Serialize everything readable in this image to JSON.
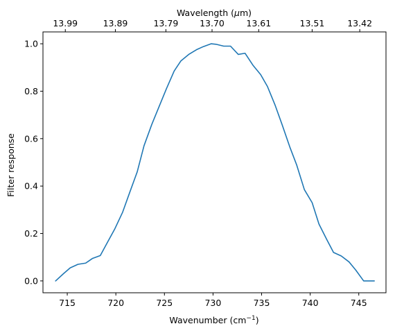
{
  "chart_data": {
    "type": "line",
    "xlabel": "Wavenumber (cm",
    "xlabel_sup": "−1",
    "xlabel_suffix": ")",
    "ylabel": "Filter response",
    "top_xlabel_prefix": "Wavelength (",
    "top_xlabel_mu": "μ",
    "top_xlabel_suffix": "m)",
    "xlim": [
      712.5,
      747.8
    ],
    "ylim": [
      -0.05,
      1.05
    ],
    "x_ticks": [
      715,
      720,
      725,
      730,
      735,
      740,
      745
    ],
    "x_tick_labels": [
      "715",
      "720",
      "725",
      "730",
      "735",
      "740",
      "745"
    ],
    "y_ticks": [
      0.0,
      0.2,
      0.4,
      0.6,
      0.8,
      1.0
    ],
    "y_tick_labels": [
      "0.0",
      "0.2",
      "0.4",
      "0.6",
      "0.8",
      "1.0"
    ],
    "top_ticks": [
      {
        "label": "13.99",
        "wavenumber": 714.8
      },
      {
        "label": "13.89",
        "wavenumber": 719.95
      },
      {
        "label": "13.79",
        "wavenumber": 725.15
      },
      {
        "label": "13.70",
        "wavenumber": 729.9
      },
      {
        "label": "13.61",
        "wavenumber": 734.7
      },
      {
        "label": "13.51",
        "wavenumber": 740.2
      },
      {
        "label": "13.42",
        "wavenumber": 745.1
      }
    ],
    "grid": false,
    "series": [
      {
        "color": "#1f77b4",
        "x": [
          713.8,
          714.6,
          715.3,
          716.1,
          716.9,
          717.6,
          718.4,
          719.1,
          719.9,
          720.7,
          721.4,
          722.2,
          722.9,
          723.7,
          724.5,
          725.2,
          726.0,
          726.7,
          727.5,
          728.3,
          729.0,
          729.8,
          730.3,
          731.1,
          731.8,
          732.6,
          733.3,
          734.1,
          734.9,
          735.6,
          736.4,
          737.1,
          737.9,
          738.6,
          739.4,
          740.2,
          740.9,
          741.7,
          742.4,
          743.2,
          744.0,
          744.7,
          745.5,
          746.2,
          746.6
        ],
        "y": [
          0.0,
          0.03,
          0.055,
          0.07,
          0.075,
          0.095,
          0.107,
          0.16,
          0.22,
          0.29,
          0.37,
          0.46,
          0.57,
          0.66,
          0.74,
          0.81,
          0.885,
          0.928,
          0.955,
          0.975,
          0.988,
          1.0,
          0.998,
          0.99,
          0.99,
          0.955,
          0.96,
          0.91,
          0.87,
          0.82,
          0.74,
          0.66,
          0.565,
          0.49,
          0.385,
          0.33,
          0.24,
          0.175,
          0.12,
          0.105,
          0.08,
          0.045,
          0.0,
          0.0,
          0.0
        ]
      }
    ]
  }
}
